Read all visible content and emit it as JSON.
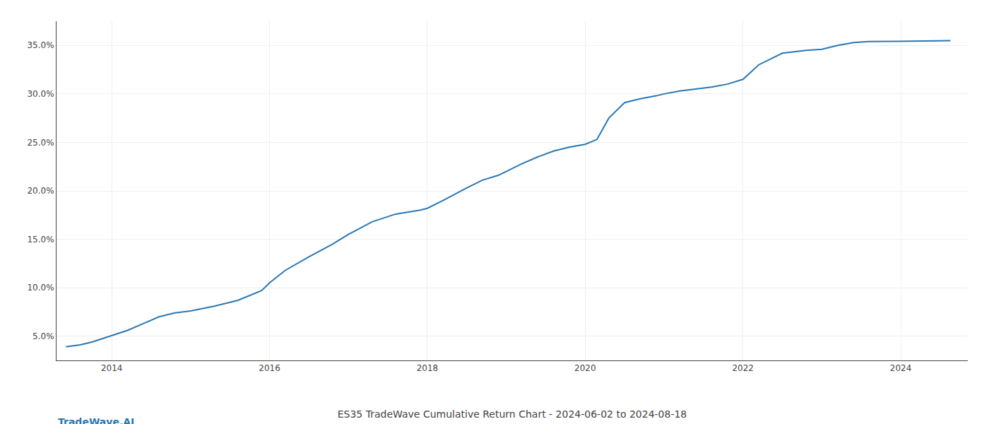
{
  "chart_data": {
    "type": "line",
    "title": "ES35 TradeWave Cumulative Return Chart - 2024-06-02 to 2024-08-18",
    "annotations": [
      "TradeWave.AI"
    ],
    "color": "#2878b5",
    "x": [
      2013.42,
      2013.6,
      2013.75,
      2013.9,
      2014.0,
      2014.2,
      2014.4,
      2014.6,
      2014.8,
      2015.0,
      2015.3,
      2015.6,
      2015.9,
      2016.0,
      2016.2,
      2016.5,
      2016.8,
      2017.0,
      2017.3,
      2017.6,
      2017.9,
      2018.0,
      2018.2,
      2018.5,
      2018.7,
      2018.9,
      2019.0,
      2019.2,
      2019.4,
      2019.6,
      2019.8,
      2020.0,
      2020.15,
      2020.3,
      2020.5,
      2020.7,
      2020.9,
      2021.0,
      2021.2,
      2021.4,
      2021.6,
      2021.8,
      2022.0,
      2022.2,
      2022.5,
      2022.8,
      2023.0,
      2023.2,
      2023.4,
      2023.6,
      2024.0,
      2024.3,
      2024.63
    ],
    "values": [
      3.9,
      4.1,
      4.4,
      4.8,
      5.1,
      5.6,
      6.3,
      7.0,
      7.4,
      7.6,
      8.1,
      8.7,
      9.7,
      10.5,
      11.8,
      13.2,
      14.5,
      15.5,
      16.8,
      17.6,
      18.0,
      18.2,
      19.0,
      20.3,
      21.1,
      21.6,
      22.0,
      22.8,
      23.5,
      24.1,
      24.5,
      24.8,
      25.3,
      27.5,
      29.1,
      29.5,
      29.8,
      30.0,
      30.3,
      30.5,
      30.7,
      31.0,
      31.5,
      33.0,
      34.2,
      34.5,
      34.6,
      35.0,
      35.3,
      35.4,
      35.4,
      35.45,
      35.5
    ],
    "xlim": [
      2013.3,
      2024.85
    ],
    "xticks": [
      2014,
      2016,
      2018,
      2020,
      2022,
      2024
    ],
    "ylim": [
      2.5,
      37.5
    ],
    "yticks": [
      {
        "value": 5.0,
        "label": "5.0%"
      },
      {
        "value": 10.0,
        "label": "10.0%"
      },
      {
        "value": 15.0,
        "label": "15.0%"
      },
      {
        "value": 20.0,
        "label": "20.0%"
      },
      {
        "value": 25.0,
        "label": "25.0%"
      },
      {
        "value": 30.0,
        "label": "30.0%"
      },
      {
        "value": 35.0,
        "label": "35.0%"
      }
    ],
    "grid": true
  }
}
